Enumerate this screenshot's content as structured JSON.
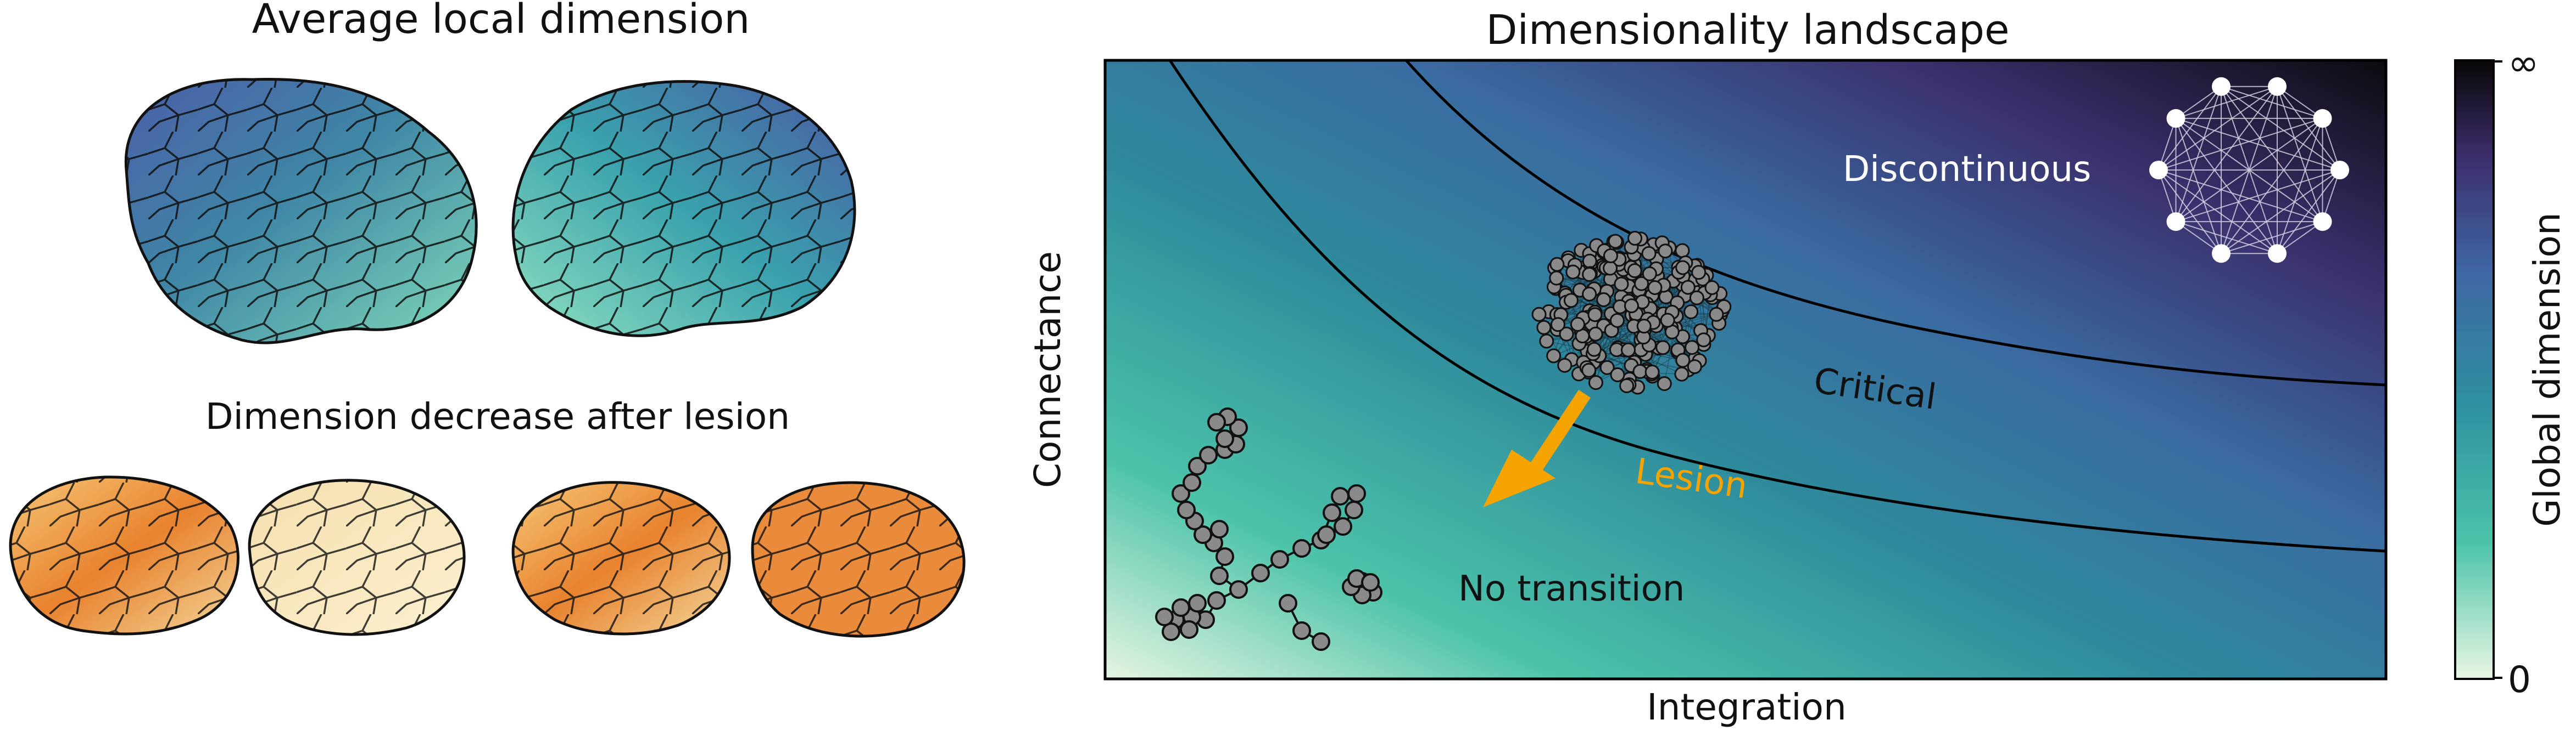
{
  "left_panel": {
    "top_title": "Average local dimension",
    "bottom_title": "Dimension decrease after lesion"
  },
  "landscape": {
    "title": "Dimensionality landscape",
    "xlabel": "Integration",
    "ylabel": "Connectance",
    "regions": {
      "discontinuous": "Discontinuous",
      "critical": "Critical",
      "no_transition": "No transition"
    },
    "arrow_label": "Lesion",
    "arrow_color": "#f5a300"
  },
  "colorbar": {
    "label": "Global dimension",
    "tick_max": "∞",
    "tick_min": "0",
    "colors": [
      "#e8f6e4",
      "#4cc3a9",
      "#2e8fa0",
      "#3f66a4",
      "#3d2f6e",
      "#0a0708"
    ]
  }
}
